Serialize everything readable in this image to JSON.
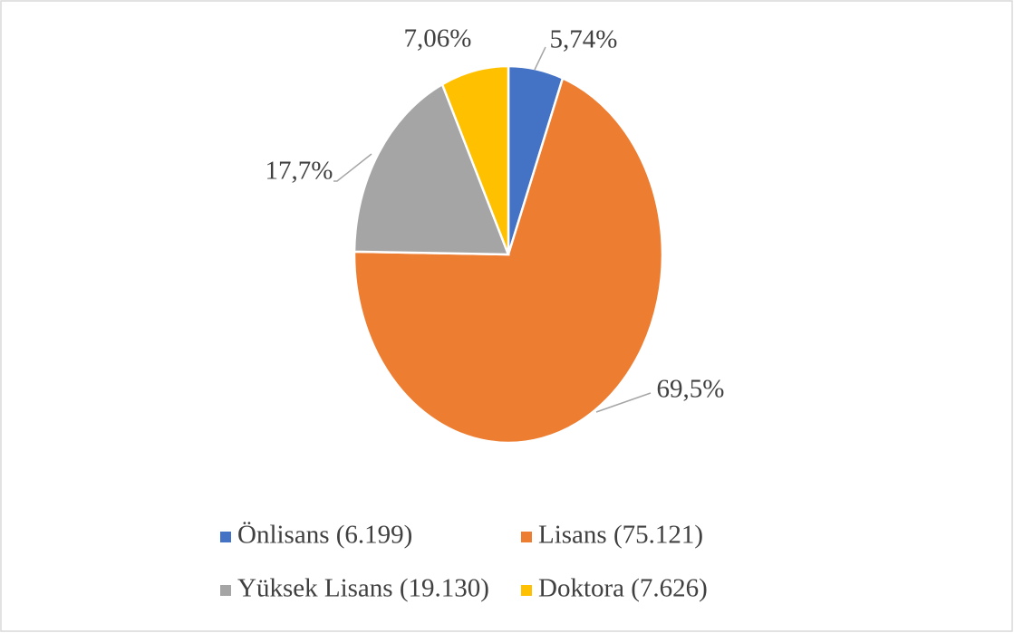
{
  "chart_data": {
    "type": "pie",
    "categories": [
      "Önlisans (6.199)",
      "Lisans (75.121)",
      "Yüksek Lisans (19.130)",
      "Doktora (7.626)"
    ],
    "values": [
      5.74,
      69.5,
      17.7,
      7.06
    ],
    "value_labels": [
      "5,74%",
      "69,5%",
      "17,7%",
      "7,06%"
    ],
    "colors": [
      "#4472c4",
      "#ed7d31",
      "#a5a5a5",
      "#ffc000"
    ],
    "legend": "bottom"
  }
}
